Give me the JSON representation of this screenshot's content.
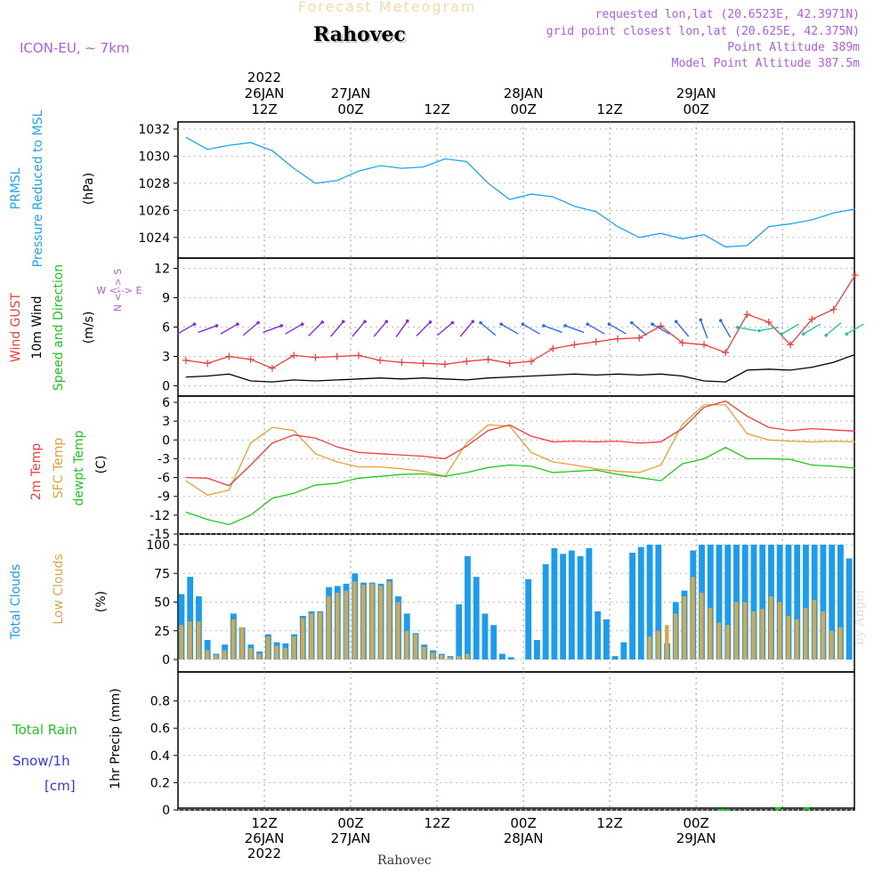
{
  "header": {
    "banner": "Forecast Meteogram",
    "location": "Rahovec",
    "model": "ICON-EU, ~ 7km",
    "requested": "requested lon,lat (20.6523E, 42.3971N)",
    "grid_point": "grid point closest lon,lat (20.625E, 42.375N)",
    "point_altitude": "Point Altitude 389m",
    "model_altitude": "Model Point Altitude 387.5m",
    "footer_location": "Rahovec",
    "watermark": "by Angel"
  },
  "colors": {
    "pressure": "#1aa7ec",
    "gust": "#f03c3c",
    "wind": "#000000",
    "temp2m": "#f03c3c",
    "sfc": "#e8a030",
    "dewpt": "#1ec81e",
    "total_clouds": "#1a9cf0",
    "low_clouds": "#d8a848",
    "rain": "#1ec81e",
    "snow": "#3232ff",
    "meta": "#b05ce0",
    "banner": "#f5d9a8"
  },
  "chart_data": [
    {
      "type": "line",
      "panel": "pressure",
      "label_lines": [
        "PRMSL",
        "Pressure Reduced to MSL"
      ],
      "unit": "(hPa)",
      "ylim": [
        1023,
        1032
      ],
      "yticks": [
        1024,
        1026,
        1028,
        1030,
        1032
      ],
      "x_hours": [
        0,
        3,
        6,
        9,
        12,
        15,
        18,
        21,
        24,
        27,
        30,
        33,
        36,
        39,
        42,
        45,
        48,
        51,
        54,
        57,
        60,
        63,
        66,
        69,
        72,
        75,
        78,
        81,
        84,
        87,
        90,
        93
      ],
      "series": [
        {
          "key": "pressure",
          "values": [
            1031.4,
            1030.5,
            1030.8,
            1031.0,
            1030.4,
            1029.1,
            1028.0,
            1028.2,
            1028.9,
            1029.3,
            1029.1,
            1029.2,
            1029.8,
            1029.6,
            1028.0,
            1026.8,
            1027.2,
            1027.0,
            1026.3,
            1025.9,
            1024.8,
            1024.0,
            1024.3,
            1023.9,
            1024.2,
            1023.3,
            1023.4,
            1024.8,
            1025.0,
            1025.3,
            1025.8,
            1026.1
          ]
        }
      ]
    },
    {
      "type": "line",
      "panel": "wind",
      "label_lines": [
        "Wind GUST",
        "10m Wind",
        "Speed and Direction"
      ],
      "unit": "(m/s)",
      "compass": {
        "n": "N",
        "s": "S",
        "e": "E",
        "w": "W"
      },
      "ylim": [
        -0.5,
        12.5
      ],
      "yticks": [
        0,
        3,
        6,
        9,
        12
      ],
      "x_hours": [
        0,
        3,
        6,
        9,
        12,
        15,
        18,
        21,
        24,
        27,
        30,
        33,
        36,
        39,
        42,
        45,
        48,
        51,
        54,
        57,
        60,
        63,
        66,
        69,
        72,
        75,
        78,
        81,
        84,
        87,
        90,
        93
      ],
      "series": [
        {
          "key": "gust",
          "values": [
            2.6,
            2.3,
            3.0,
            2.7,
            1.8,
            3.1,
            2.9,
            3.0,
            3.1,
            2.6,
            2.4,
            2.3,
            2.2,
            2.5,
            2.7,
            2.3,
            2.5,
            3.8,
            4.2,
            4.5,
            4.8,
            4.9,
            6.1,
            4.4,
            4.2,
            3.4,
            7.3,
            6.5,
            4.2,
            6.8,
            7.8,
            11.3
          ]
        },
        {
          "key": "wind",
          "values": [
            0.9,
            1.0,
            1.2,
            0.5,
            0.4,
            0.6,
            0.5,
            0.6,
            0.7,
            0.8,
            0.7,
            0.8,
            0.7,
            0.6,
            0.8,
            0.9,
            1.0,
            1.1,
            1.2,
            1.1,
            1.2,
            1.1,
            1.2,
            1.0,
            0.5,
            0.4,
            1.6,
            1.7,
            1.6,
            1.9,
            2.4,
            3.2
          ]
        }
      ],
      "barbs_y": 5.8,
      "barbs_dir_deg": [
        60,
        70,
        60,
        50,
        70,
        60,
        45,
        40,
        40,
        40,
        35,
        45,
        50,
        40,
        310,
        300,
        300,
        290,
        290,
        300,
        300,
        310,
        300,
        320,
        340,
        330,
        280,
        260,
        240,
        240,
        230,
        240
      ]
    },
    {
      "type": "line",
      "panel": "temperature",
      "label_lines": [
        "2m Temp",
        "SFC Temp",
        "dewpt Temp"
      ],
      "unit": "(C)",
      "ylim": [
        -15,
        7
      ],
      "yticks": [
        -15,
        -12,
        -9,
        -6,
        -3,
        0,
        3,
        6
      ],
      "x_hours": [
        0,
        3,
        6,
        9,
        12,
        15,
        18,
        21,
        24,
        27,
        30,
        33,
        36,
        39,
        42,
        45,
        48,
        51,
        54,
        57,
        60,
        63,
        66,
        69,
        72,
        75,
        78,
        81,
        84,
        87,
        90,
        93
      ],
      "series": [
        {
          "key": "temp2m",
          "values": [
            -6.0,
            -6.1,
            -7.3,
            -4.0,
            -0.5,
            0.8,
            0.3,
            -1.1,
            -2.0,
            -2.2,
            -2.4,
            -2.6,
            -3.0,
            -1.0,
            1.5,
            2.4,
            0.6,
            -0.3,
            -0.2,
            -0.3,
            -0.2,
            -0.5,
            -0.3,
            1.8,
            5.2,
            6.2,
            3.8,
            2.0,
            1.5,
            1.8,
            1.6,
            1.4
          ]
        },
        {
          "key": "sfc",
          "values": [
            -6.5,
            -8.8,
            -8.0,
            -0.5,
            2.0,
            1.5,
            -2.2,
            -3.5,
            -4.3,
            -4.3,
            -4.6,
            -5.0,
            -5.8,
            -0.5,
            2.4,
            2.2,
            -2.0,
            -3.5,
            -4.0,
            -4.6,
            -5.0,
            -5.2,
            -4.0,
            2.5,
            5.6,
            5.6,
            1.0,
            0.0,
            -0.2,
            -0.3,
            -0.2,
            -0.3
          ]
        },
        {
          "key": "dewpt",
          "values": [
            -11.5,
            -12.7,
            -13.5,
            -12.0,
            -9.3,
            -8.5,
            -7.2,
            -6.9,
            -6.1,
            -5.8,
            -5.5,
            -5.4,
            -5.8,
            -5.2,
            -4.4,
            -4.0,
            -4.2,
            -5.2,
            -5.0,
            -4.8,
            -5.5,
            -6.0,
            -6.5,
            -3.8,
            -3.0,
            -1.2,
            -3.0,
            -3.0,
            -3.1,
            -4.0,
            -4.2,
            -4.5
          ]
        }
      ]
    },
    {
      "type": "bar",
      "panel": "clouds",
      "label_lines": [
        "Total Clouds",
        "Low Clouds"
      ],
      "unit": "(%)",
      "ylim": [
        0,
        100
      ],
      "yticks": [
        0,
        25,
        50,
        75,
        100
      ],
      "start_hour": 0,
      "series": [
        {
          "key": "total_clouds",
          "values": [
            57,
            72,
            55,
            17,
            5,
            13,
            40,
            28,
            13,
            7,
            22,
            15,
            14,
            22,
            38,
            42,
            42,
            63,
            64,
            66,
            75,
            67,
            67,
            66,
            70,
            55,
            40,
            23,
            13,
            8,
            5,
            3,
            48,
            90,
            72,
            40,
            30,
            5,
            2,
            0,
            70,
            17,
            83,
            97,
            92,
            95,
            90,
            97,
            42,
            35,
            3,
            15,
            93,
            98,
            100,
            100,
            14,
            50,
            60,
            95,
            100,
            100,
            100,
            100,
            100,
            100,
            100,
            100,
            100,
            100,
            100,
            100,
            100,
            100,
            100,
            100,
            100,
            88
          ]
        },
        {
          "key": "low_clouds",
          "values": [
            30,
            33,
            33,
            8,
            4,
            8,
            35,
            28,
            10,
            5,
            20,
            12,
            10,
            20,
            36,
            40,
            41,
            55,
            58,
            60,
            68,
            65,
            66,
            64,
            68,
            50,
            25,
            22,
            11,
            6,
            4,
            2,
            3,
            5,
            0,
            0,
            0,
            0,
            0,
            0,
            0,
            0,
            0,
            0,
            0,
            0,
            0,
            0,
            0,
            0,
            0,
            0,
            0,
            0,
            20,
            25,
            30,
            40,
            55,
            72,
            58,
            45,
            32,
            30,
            50,
            50,
            42,
            44,
            55,
            50,
            38,
            35,
            45,
            52,
            42,
            25,
            28,
            0
          ]
        }
      ]
    },
    {
      "type": "bar",
      "panel": "precip",
      "label_lines": [
        "1hr Precip (mm)"
      ],
      "legend": {
        "rain": "Total  Rain",
        "snow": "Snow/1h",
        "cm": "[cm]"
      },
      "ylim": [
        0,
        1.0
      ],
      "yticks": [
        0,
        0.2,
        0.4,
        0.6,
        0.8
      ],
      "ytick_labels": [
        "0",
        "0.2",
        "0.4",
        "0.6",
        "0.8"
      ],
      "series": [
        {
          "key": "rain",
          "hours": [
            75,
            76,
            83,
            87
          ],
          "values": [
            0.01,
            0.01,
            0.02,
            0.02
          ]
        }
      ]
    }
  ],
  "time_axis": {
    "start": "2022-01-26 00Z",
    "grid_hours": [
      12,
      24,
      36,
      48,
      60,
      72,
      84
    ],
    "top_labels": [
      {
        "hour": 12,
        "lines": [
          "2022",
          "26JAN",
          "12Z"
        ]
      },
      {
        "hour": 24,
        "lines": [
          "27JAN",
          "00Z"
        ]
      },
      {
        "hour": 36,
        "lines": [
          "12Z"
        ]
      },
      {
        "hour": 48,
        "lines": [
          "28JAN",
          "00Z"
        ]
      },
      {
        "hour": 60,
        "lines": [
          "12Z"
        ]
      },
      {
        "hour": 72,
        "lines": [
          "29JAN",
          "00Z"
        ]
      }
    ],
    "bottom_labels": [
      {
        "hour": 12,
        "lines": [
          "12Z",
          "26JAN",
          "2022"
        ]
      },
      {
        "hour": 24,
        "lines": [
          "00Z",
          "27JAN"
        ]
      },
      {
        "hour": 36,
        "lines": [
          "12Z"
        ]
      },
      {
        "hour": 48,
        "lines": [
          "00Z",
          "28JAN"
        ]
      },
      {
        "hour": 60,
        "lines": [
          "12Z"
        ]
      },
      {
        "hour": 72,
        "lines": [
          "00Z",
          "29JAN"
        ]
      }
    ]
  }
}
